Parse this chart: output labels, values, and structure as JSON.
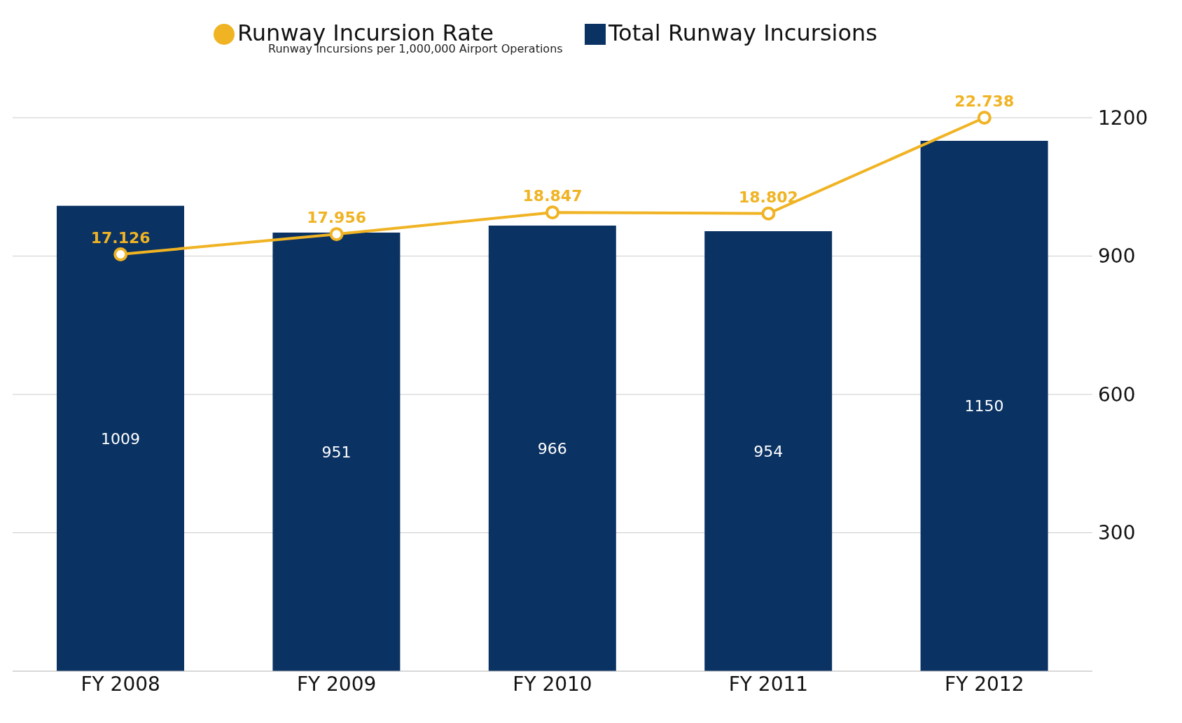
{
  "chart_data": {
    "type": "bar",
    "categories": [
      "FY 2008",
      "FY 2009",
      "FY 2010",
      "FY 2011",
      "FY 2012"
    ],
    "series": [
      {
        "name": "Runway Incursion Rate",
        "type": "line",
        "axis": "y2",
        "color": "#f0b323",
        "values": [
          17.126,
          17.956,
          18.847,
          18.802,
          22.738
        ]
      },
      {
        "name": "Total Runway Incursions",
        "color": "#0a3263",
        "values": [
          1009,
          951,
          966,
          954,
          1150
        ]
      }
    ],
    "annotations": [
      "Runway Incursions per 1,000,000 Airport Operations"
    ],
    "ylim": [
      0,
      1200
    ],
    "yticks": [
      {
        "value": 0,
        "label": null
      },
      300,
      600,
      900,
      1200
    ],
    "grid": "y",
    "legend": "top",
    "marker": "circle",
    "line_style": "solid",
    "data_labels": true
  }
}
